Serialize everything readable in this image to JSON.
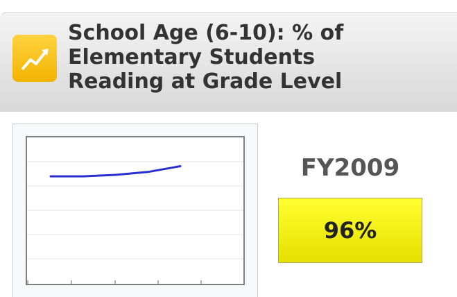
{
  "header": {
    "title_lines": [
      "School Age (6-10): % of",
      "Elementary Students",
      "Reading at Grade Level"
    ]
  },
  "chart_data": {
    "type": "line",
    "values": [
      74,
      74,
      75,
      77,
      81
    ],
    "color": "#2a2fd0",
    "ylim": [
      0,
      100
    ]
  },
  "indicator": {
    "period": "FY2009",
    "value": "96%"
  }
}
